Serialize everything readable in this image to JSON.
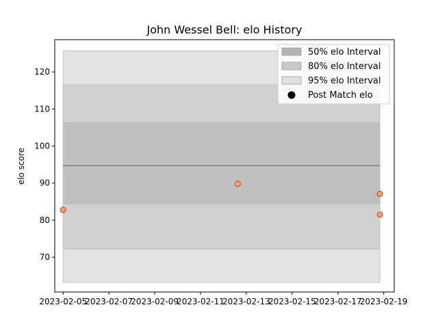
{
  "chart_data": {
    "type": "scatter",
    "title": "John Wessel Bell: elo History",
    "xlabel": "",
    "ylabel": "elo score",
    "x_axis_type": "date",
    "xlim": [
      "2023-02-04T15:12",
      "2023-02-19T11:00"
    ],
    "ylim": [
      60.6,
      128.7
    ],
    "x_ticks": [
      "2023-02-05",
      "2023-02-07",
      "2023-02-09",
      "2023-02-11",
      "2023-02-13",
      "2023-02-15",
      "2023-02-17",
      "2023-02-19"
    ],
    "y_ticks": [
      70,
      80,
      90,
      100,
      110,
      120
    ],
    "grid": false,
    "legend_position": "top-right",
    "mean_line": {
      "value": 94.7,
      "x_start": "2023-02-05T00:00",
      "x_end": "2023-02-18T20:00",
      "color": "#808080"
    },
    "bands": [
      {
        "name": "95% elo Interval",
        "low": 63.2,
        "high": 125.7,
        "x_start": "2023-02-05T00:00",
        "x_end": "2023-02-18T20:00",
        "color": "#e3e3e3"
      },
      {
        "name": "80% elo Interval",
        "low": 72.2,
        "high": 116.5,
        "x_start": "2023-02-05T00:00",
        "x_end": "2023-02-18T20:00",
        "color": "#d0d0d0"
      },
      {
        "name": "50% elo Interval",
        "low": 84.3,
        "high": 106.4,
        "x_start": "2023-02-05T00:00",
        "x_end": "2023-02-18T20:00",
        "color": "#bfbfbf"
      }
    ],
    "series": [
      {
        "name": "Post Match elo",
        "points": [
          {
            "x": "2023-02-05T00:00",
            "y": 82.8
          },
          {
            "x": "2023-02-12T15:00",
            "y": 89.8
          },
          {
            "x": "2023-02-18T20:00",
            "y": 87.1
          },
          {
            "x": "2023-02-18T20:00",
            "y": 81.5
          }
        ],
        "marker_fill": "#f5a65b",
        "marker_edge": "#c0392b"
      }
    ],
    "legend": [
      {
        "label": "50% elo Interval",
        "kind": "patch",
        "color": "#b3b3b3"
      },
      {
        "label": "80% elo Interval",
        "kind": "patch",
        "color": "#c9c9c9"
      },
      {
        "label": "95% elo Interval",
        "kind": "patch",
        "color": "#e0e0e0"
      },
      {
        "label": "Post Match elo",
        "kind": "marker",
        "color": "#000000"
      }
    ]
  }
}
